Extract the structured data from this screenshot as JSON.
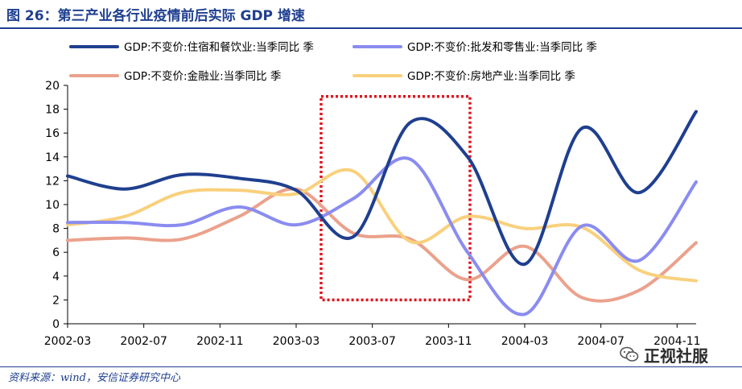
{
  "header": {
    "title": "图 26：第三产业各行业疫情前后实际 GDP 增速"
  },
  "footer": {
    "source": "资料来源：wind，安信证券研究中心",
    "watermark": "正视社服"
  },
  "chart_data": {
    "type": "line",
    "title": "",
    "xlabel": "",
    "ylabel": "",
    "ylim": [
      0,
      20
    ],
    "yticks": [
      0,
      2,
      4,
      6,
      8,
      10,
      12,
      14,
      16,
      18,
      20
    ],
    "x": [
      "2002-03",
      "2002-06",
      "2002-09",
      "2002-12",
      "2003-03",
      "2003-06",
      "2003-09",
      "2003-12",
      "2004-03",
      "2004-06",
      "2004-09",
      "2004-12"
    ],
    "xtick_labels": [
      "2002-03",
      "2002-07",
      "2002-11",
      "2003-03",
      "2003-07",
      "2003-11",
      "2004-03",
      "2004-07",
      "2004-11"
    ],
    "grid": false,
    "legend_position": "top",
    "highlight_box": {
      "x_from": "2003-06",
      "x_to": "2003-12",
      "y_from": 2,
      "y_to": 19
    },
    "series": [
      {
        "name": "GDP:不变价:住宿和餐饮业:当季同比 季",
        "color": "#1f3f8f",
        "values": [
          12.4,
          11.3,
          12.5,
          12.2,
          11.2,
          7.3,
          16.9,
          14.0,
          5.0,
          16.4,
          11.0,
          17.8
        ]
      },
      {
        "name": "GDP:不变价:批发和零售业:当季同比 季",
        "color": "#8a8cf0",
        "values": [
          8.5,
          8.5,
          8.3,
          9.8,
          8.3,
          10.5,
          13.8,
          6.0,
          0.8,
          8.2,
          5.3,
          11.9
        ]
      },
      {
        "name": "GDP:不变价:金融业:当季同比 季",
        "color": "#eba18c",
        "values": [
          7.0,
          7.2,
          7.1,
          9.0,
          11.3,
          7.6,
          7.1,
          3.7,
          6.5,
          2.2,
          2.8,
          6.8
        ]
      },
      {
        "name": "GDP:不变价:房地产业:当季同比 季",
        "color": "#f9d07d",
        "values": [
          8.3,
          9.0,
          11.0,
          11.2,
          10.9,
          12.8,
          6.9,
          9.0,
          8.0,
          8.1,
          4.5,
          3.6
        ]
      }
    ]
  }
}
